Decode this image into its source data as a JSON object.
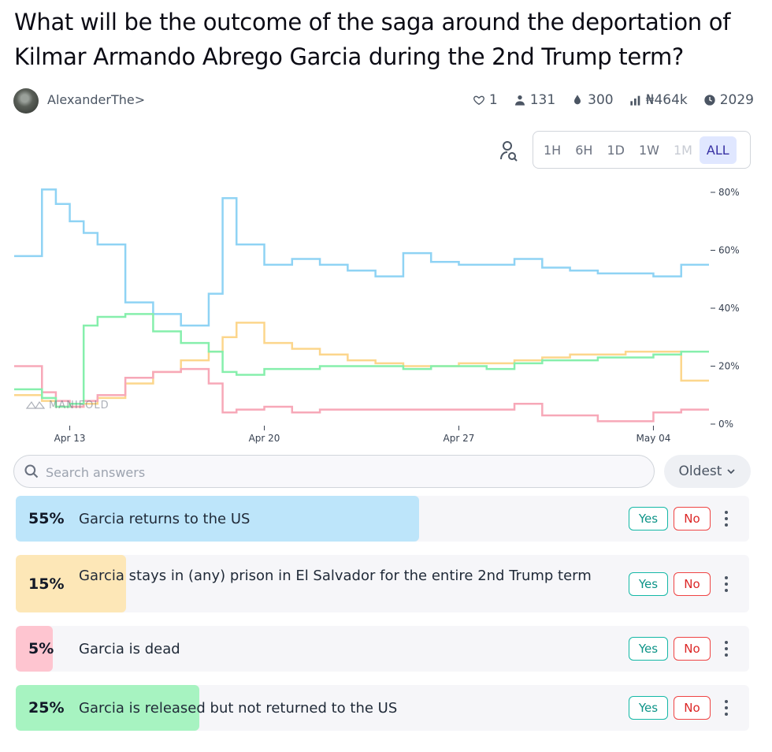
{
  "question": {
    "title": "What will be the outcome of the saga around the deportation of Kilmar Armando Abrego Garcia during the 2nd Trump term?"
  },
  "creator": {
    "name": "AlexanderThe>"
  },
  "stats": {
    "likes": "1",
    "traders": "131",
    "liquidity": "300",
    "volume": "₦464k",
    "close_year": "2029"
  },
  "time_ranges": [
    "1H",
    "6H",
    "1D",
    "1W",
    "1M",
    "ALL"
  ],
  "selected_range": "ALL",
  "watermark": "MANIFOLD",
  "search": {
    "placeholder": "Search answers",
    "value": ""
  },
  "sort": {
    "label": "Oldest"
  },
  "buttons": {
    "yes": "Yes",
    "no": "No"
  },
  "colors": {
    "blue": "#8fd3f4",
    "yellow": "#fcd68c",
    "pink": "#f7a8b8",
    "green": "#86efac"
  },
  "answers": [
    {
      "pct": "55%",
      "prob": 0.55,
      "text": "Garcia returns to the US",
      "color": "#bde5fa"
    },
    {
      "pct": "15%",
      "prob": 0.15,
      "text": "Garcia stays in (any) prison in El Salvador for the entire 2nd Trump term",
      "color": "#fde7b7"
    },
    {
      "pct": "5%",
      "prob": 0.05,
      "text": "Garcia is dead",
      "color": "#fec5d0"
    },
    {
      "pct": "25%",
      "prob": 0.25,
      "text": "Garcia is released but not returned to the US",
      "color": "#a7f3c1"
    }
  ],
  "chart_data": {
    "type": "line",
    "x_ticks": [
      "Apr 13",
      "Apr 20",
      "Apr 27",
      "May 04"
    ],
    "y_ticks": [
      "80%",
      "60%",
      "40%",
      "20%",
      "0%"
    ],
    "ylim": [
      0,
      80
    ],
    "series": [
      {
        "name": "Garcia returns to the US",
        "color": "#8fd3f4",
        "x": [
          "Apr 11",
          "Apr 12",
          "Apr 12.5",
          "Apr 13",
          "Apr 13.5",
          "Apr 14",
          "Apr 15",
          "Apr 16",
          "Apr 17",
          "Apr 18",
          "Apr 18.5",
          "Apr 19",
          "Apr 20",
          "Apr 21",
          "Apr 22",
          "Apr 23",
          "Apr 24",
          "Apr 25",
          "Apr 26",
          "Apr 27",
          "Apr 28",
          "Apr 29",
          "Apr 30",
          "May 01",
          "May 02",
          "May 03",
          "May 04",
          "May 05",
          "May 06"
        ],
        "values": [
          58,
          81,
          76,
          70,
          66,
          62,
          42,
          38,
          34,
          45,
          78,
          62,
          55,
          57,
          55,
          53,
          51,
          59,
          56,
          55,
          55,
          57,
          54,
          53,
          52,
          52,
          51,
          55,
          55
        ]
      },
      {
        "name": "Garcia stays in (any) prison in El Salvador for the entire 2nd Trump term",
        "color": "#fcd68c",
        "x": [
          "Apr 11",
          "Apr 12",
          "Apr 12.5",
          "Apr 13",
          "Apr 13.5",
          "Apr 14",
          "Apr 15",
          "Apr 16",
          "Apr 17",
          "Apr 18",
          "Apr 18.5",
          "Apr 19",
          "Apr 20",
          "Apr 21",
          "Apr 22",
          "Apr 23",
          "Apr 24",
          "Apr 25",
          "Apr 26",
          "Apr 27",
          "Apr 28",
          "Apr 29",
          "Apr 30",
          "May 01",
          "May 02",
          "May 03",
          "May 04",
          "May 05",
          "May 06"
        ],
        "values": [
          10,
          8,
          6,
          6,
          7,
          9,
          14,
          18,
          22,
          25,
          30,
          35,
          28,
          26,
          24,
          22,
          21,
          20,
          20,
          21,
          21,
          22,
          23,
          24,
          24,
          25,
          25,
          15,
          15
        ]
      },
      {
        "name": "Garcia is dead",
        "color": "#f7a8b8",
        "x": [
          "Apr 11",
          "Apr 12",
          "Apr 12.5",
          "Apr 13",
          "Apr 13.5",
          "Apr 14",
          "Apr 15",
          "Apr 16",
          "Apr 17",
          "Apr 18",
          "Apr 18.5",
          "Apr 19",
          "Apr 20",
          "Apr 21",
          "Apr 22",
          "Apr 23",
          "Apr 24",
          "Apr 25",
          "Apr 26",
          "Apr 27",
          "Apr 28",
          "Apr 29",
          "Apr 30",
          "May 01",
          "May 02",
          "May 03",
          "May 04",
          "May 05",
          "May 06"
        ],
        "values": [
          20,
          11,
          8,
          6,
          8,
          10,
          16,
          18,
          19,
          14,
          4,
          5,
          6,
          4,
          5,
          5,
          5,
          5,
          5,
          5,
          5,
          7,
          3,
          3,
          1,
          1,
          4,
          5,
          5
        ]
      },
      {
        "name": "Garcia is released but not returned to the US",
        "color": "#86efac",
        "x": [
          "Apr 11",
          "Apr 12",
          "Apr 12.5",
          "Apr 13",
          "Apr 13.5",
          "Apr 14",
          "Apr 15",
          "Apr 16",
          "Apr 17",
          "Apr 18",
          "Apr 18.5",
          "Apr 19",
          "Apr 20",
          "Apr 21",
          "Apr 22",
          "Apr 23",
          "Apr 24",
          "Apr 25",
          "Apr 26",
          "Apr 27",
          "Apr 28",
          "Apr 29",
          "Apr 30",
          "May 01",
          "May 02",
          "May 03",
          "May 04",
          "May 05",
          "May 06"
        ],
        "values": [
          12,
          9,
          6,
          7,
          34,
          37,
          38,
          32,
          28,
          25,
          18,
          17,
          19,
          19,
          20,
          20,
          20,
          19,
          20,
          20,
          19,
          21,
          22,
          22,
          23,
          23,
          24,
          25,
          25
        ]
      }
    ]
  }
}
